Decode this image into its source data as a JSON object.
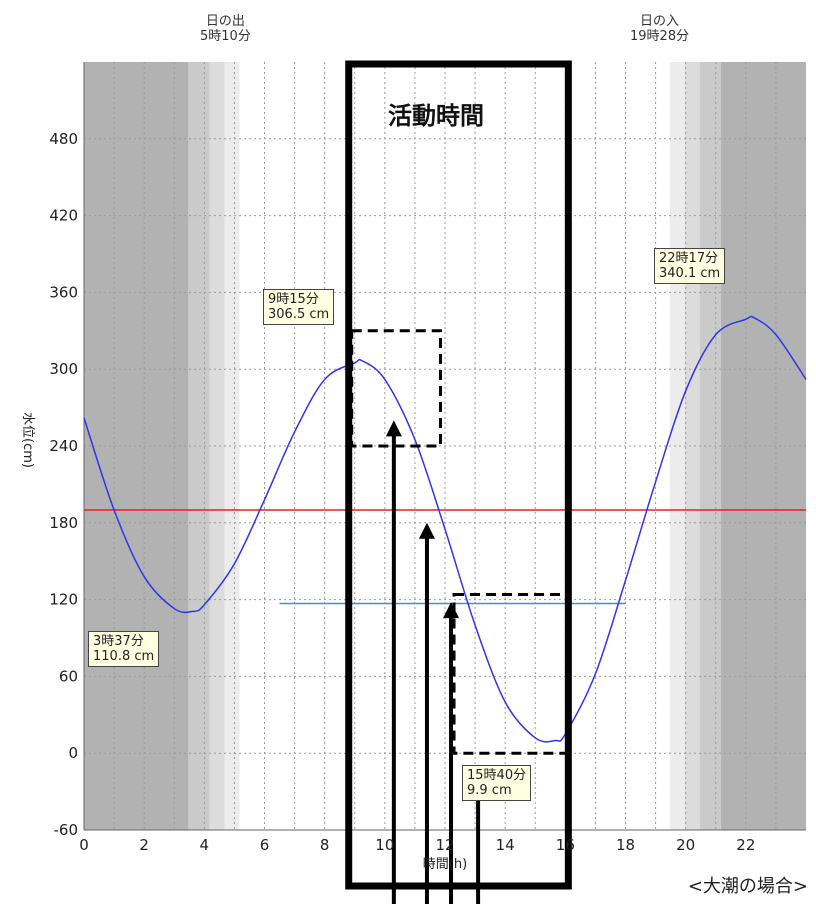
{
  "chart_data": {
    "type": "line",
    "xlabel": "時間(h)",
    "ylabel": "水位(cm)",
    "xlim": [
      0,
      24
    ],
    "ylim": [
      -60,
      540
    ],
    "x_ticks": [
      "0",
      "2",
      "4",
      "6",
      "8",
      "10",
      "12",
      "14",
      "16",
      "18",
      "20",
      "22"
    ],
    "y_ticks": [
      "480",
      "420",
      "360",
      "300",
      "240",
      "180",
      "120",
      "60",
      "0",
      "-60"
    ],
    "series": [
      {
        "color": "#3333ee",
        "x": [
          0,
          1,
          2,
          3,
          3.62,
          4,
          5,
          6,
          7,
          8,
          9,
          9.25,
          10,
          11,
          12,
          13,
          14,
          15,
          15.67,
          16,
          17,
          18,
          19,
          20,
          21,
          22,
          22.28,
          23,
          24
        ],
        "y": [
          262,
          190,
          138,
          113,
          110.8,
          116,
          148,
          198,
          251,
          292,
          305,
          306.5,
          292,
          245,
          175,
          100,
          40,
          12,
          9.9,
          15,
          62,
          135,
          212,
          283,
          327,
          339,
          340.1,
          327,
          292
        ]
      }
    ],
    "reference_lines": [
      {
        "y": 190,
        "x_range": [
          0,
          24
        ],
        "color": "#e62020"
      },
      {
        "y": 117,
        "x_range": [
          6.5,
          18
        ],
        "color": "#3d8fd9"
      }
    ],
    "sunrise": {
      "label": "日の出",
      "time": "5時10分",
      "x": 5.17
    },
    "sunset": {
      "label": "日の入",
      "time": "19時28分",
      "x": 19.47
    },
    "annotations": [
      {
        "time": "3時37分",
        "value": "110.8 cm",
        "x": 3.62,
        "y": 110.8
      },
      {
        "time": "9時15分",
        "value": "306.5 cm",
        "x": 9.25,
        "y": 306.5
      },
      {
        "time": "15時40分",
        "value": "9.9 cm",
        "x": 15.67,
        "y": 9.9
      },
      {
        "time": "22時17分",
        "value": "340.1 cm",
        "x": 22.28,
        "y": 340.1
      }
    ],
    "activity_label": "活動時間",
    "activity_range": [
      8.8,
      16.1
    ],
    "dashed_regions": [
      {
        "x": [
          8.9,
          11.85
        ],
        "y": [
          240,
          330
        ]
      },
      {
        "x": [
          12.3,
          16.1
        ],
        "y": [
          0,
          124
        ]
      }
    ],
    "arrows": [
      {
        "x": 10.3,
        "y_tip": 260
      },
      {
        "x": 11.4,
        "y_tip": 180
      },
      {
        "x": 12.2,
        "y_tip": 118
      },
      {
        "x": 13.1,
        "y_tip": -10
      }
    ],
    "night_shading": [
      "#b2b2b2",
      "#cacaca",
      "#dcdcdc",
      "#ececec"
    ],
    "grid": true
  },
  "footer": "<大潮の場合>"
}
